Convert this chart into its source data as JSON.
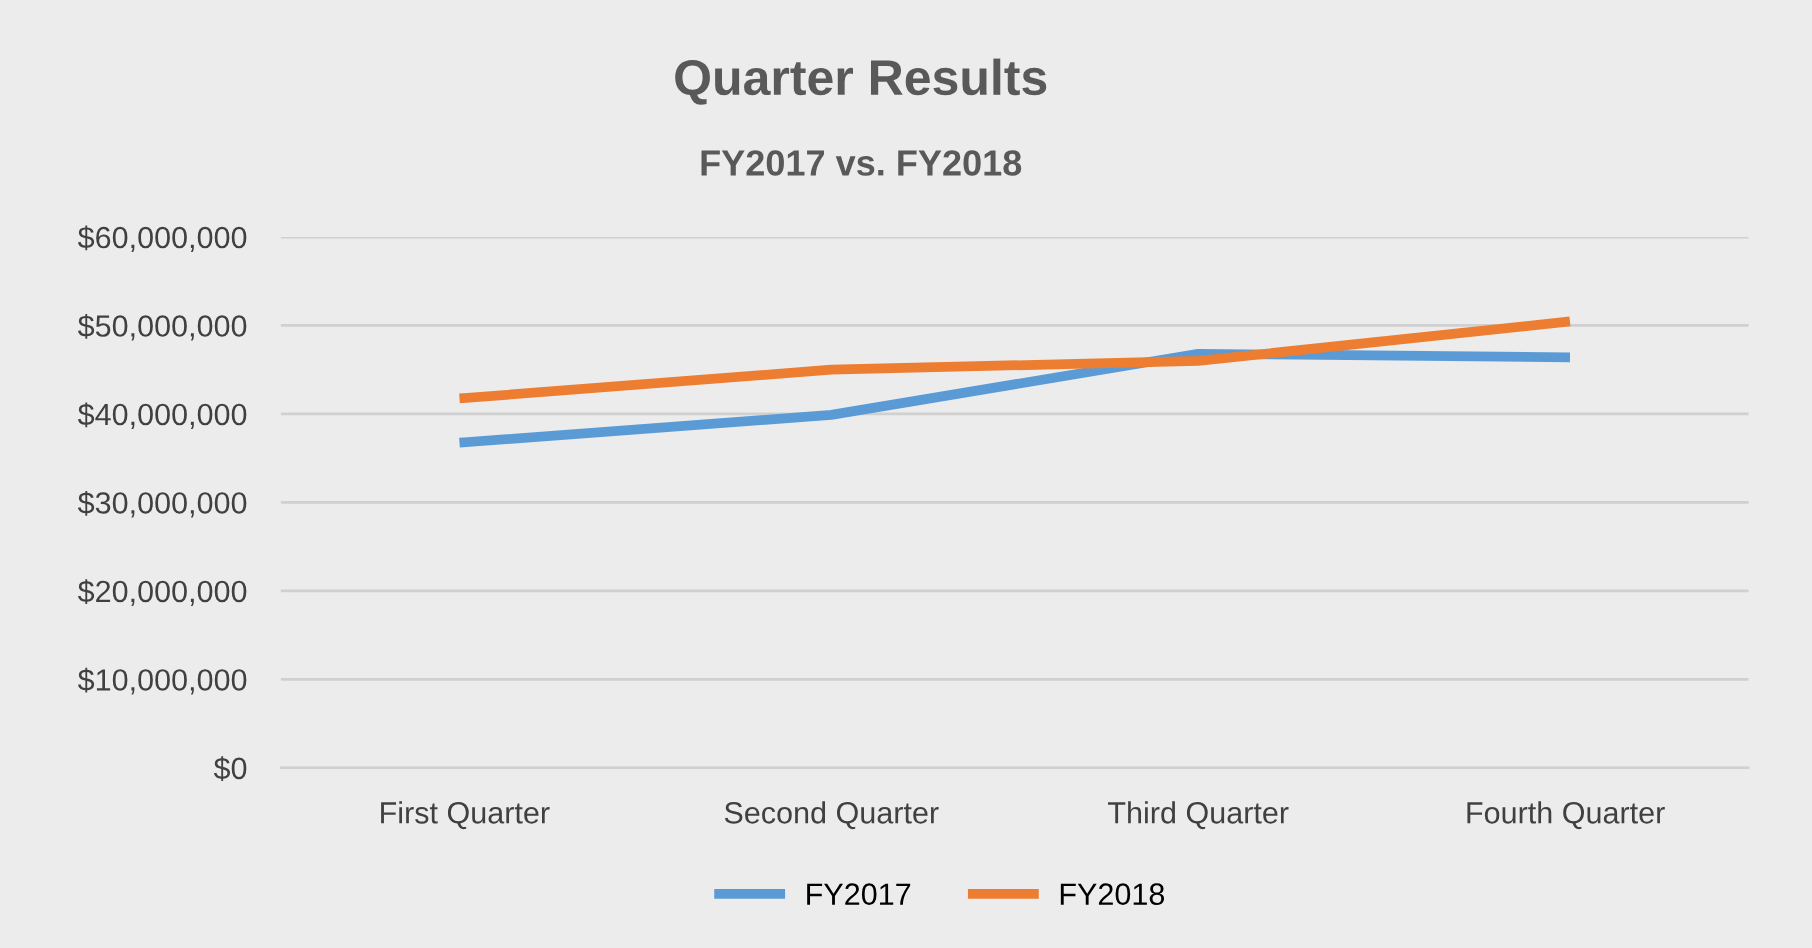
{
  "chart_data": {
    "type": "line",
    "title": "Quarter Results",
    "subtitle": "FY2017 vs. FY2018",
    "categories": [
      "First Quarter",
      "Second Quarter",
      "Third Quarter",
      "Fourth Quarter"
    ],
    "series": [
      {
        "name": "FY2017",
        "color": "#5b9bd5",
        "values": [
          36800000,
          39900000,
          46800000,
          46400000
        ]
      },
      {
        "name": "FY2018",
        "color": "#ed7d31",
        "values": [
          41800000,
          45000000,
          46000000,
          50400000
        ]
      }
    ],
    "ylim": [
      0,
      60000000
    ],
    "yticks": [
      {
        "value": 0,
        "label": "$0"
      },
      {
        "value": 10000000,
        "label": "$10,000,000"
      },
      {
        "value": 20000000,
        "label": "$20,000,000"
      },
      {
        "value": 30000000,
        "label": "$30,000,000"
      },
      {
        "value": 40000000,
        "label": "$40,000,000"
      },
      {
        "value": 50000000,
        "label": "$50,000,000"
      },
      {
        "value": 60000000,
        "label": "$60,000,000"
      }
    ],
    "grid": "y",
    "legend": "bottom",
    "marker": "none",
    "line_style": "solid"
  }
}
